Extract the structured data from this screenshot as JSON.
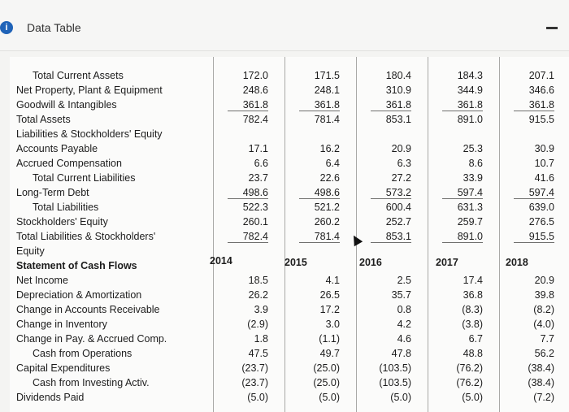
{
  "window": {
    "title": "Data Table",
    "info_icon": "info-icon",
    "minimize_icon": "minimize-icon"
  },
  "years": [
    "2014",
    "2015",
    "2016",
    "2017",
    "2018"
  ],
  "rows": [
    {
      "label": "Total Current Assets",
      "bold": false,
      "indent": true,
      "values": [
        "172.0",
        "171.5",
        "180.4",
        "184.3",
        "207.1"
      ]
    },
    {
      "label": "Net Property, Plant & Equipment",
      "bold": false,
      "indent": false,
      "values": [
        "248.6",
        "248.1",
        "310.9",
        "344.9",
        "346.6"
      ]
    },
    {
      "label": "Goodwill & Intangibles",
      "bold": false,
      "indent": false,
      "values": [
        "361.8",
        "361.8",
        "361.8",
        "361.8",
        "361.8"
      ]
    },
    {
      "label": "Total Assets",
      "bold": false,
      "indent": false,
      "values": [
        "782.4",
        "781.4",
        "853.1",
        "891.0",
        "915.5"
      ]
    },
    {
      "label": "Liabilities & Stockholders' Equity",
      "bold": false,
      "indent": false,
      "values": [
        "",
        "",
        "",
        "",
        ""
      ]
    },
    {
      "label": "Accounts Payable",
      "bold": false,
      "indent": false,
      "values": [
        "17.1",
        "16.2",
        "20.9",
        "25.3",
        "30.9"
      ]
    },
    {
      "label": "Accrued Compensation",
      "bold": false,
      "indent": false,
      "values": [
        "6.6",
        "6.4",
        "6.3",
        "8.6",
        "10.7"
      ]
    },
    {
      "label": "Total Current Liabilities",
      "bold": false,
      "indent": true,
      "values": [
        "23.7",
        "22.6",
        "27.2",
        "33.9",
        "41.6"
      ]
    },
    {
      "label": "Long-Term Debt",
      "bold": false,
      "indent": false,
      "values": [
        "498.6",
        "498.6",
        "573.2",
        "597.4",
        "597.4"
      ]
    },
    {
      "label": "Total Liabilities",
      "bold": false,
      "indent": true,
      "values": [
        "522.3",
        "521.2",
        "600.4",
        "631.3",
        "639.0"
      ]
    },
    {
      "label": "Stockholders' Equity",
      "bold": false,
      "indent": false,
      "values": [
        "260.1",
        "260.2",
        "252.7",
        "259.7",
        "276.5"
      ]
    },
    {
      "label": "Total Liabilities & Stockholders'",
      "bold": false,
      "indent": false,
      "values": [
        "782.4",
        "781.4",
        "853.1",
        "891.0",
        "915.5"
      ]
    },
    {
      "label": "Equity",
      "bold": false,
      "indent": false,
      "values": [
        "",
        "",
        "",
        "",
        ""
      ]
    },
    {
      "label": "Statement of Cash Flows",
      "bold": true,
      "indent": false,
      "values": [
        "",
        "",
        "",
        "",
        ""
      ]
    },
    {
      "label": "Net Income",
      "bold": false,
      "indent": false,
      "values": [
        "18.5",
        "4.1",
        "2.5",
        "17.4",
        "20.9"
      ]
    },
    {
      "label": "Depreciation & Amortization",
      "bold": false,
      "indent": false,
      "values": [
        "26.2",
        "26.5",
        "35.7",
        "36.8",
        "39.8"
      ]
    },
    {
      "label": "Change in Accounts Receivable",
      "bold": false,
      "indent": false,
      "values": [
        "3.9",
        "17.2",
        "0.8",
        "(8.3)",
        "(8.2)"
      ]
    },
    {
      "label": "Change in Inventory",
      "bold": false,
      "indent": false,
      "values": [
        "(2.9)",
        "3.0",
        "4.2",
        "(3.8)",
        "(4.0)"
      ]
    },
    {
      "label": "Change in Pay. & Accrued Comp.",
      "bold": false,
      "indent": false,
      "values": [
        "1.8",
        "(1.1)",
        "4.6",
        "6.7",
        "7.7"
      ]
    },
    {
      "label": "Cash from Operations",
      "bold": false,
      "indent": true,
      "values": [
        "47.5",
        "49.7",
        "47.8",
        "48.8",
        "56.2"
      ]
    },
    {
      "label": "Capital Expenditures",
      "bold": false,
      "indent": false,
      "values": [
        "(23.7)",
        "(25.0)",
        "(103.5)",
        "(76.2)",
        "(38.4)"
      ]
    },
    {
      "label": "Cash from Investing Activ.",
      "bold": false,
      "indent": true,
      "values": [
        "(23.7)",
        "(25.0)",
        "(103.5)",
        "(76.2)",
        "(38.4)"
      ]
    },
    {
      "label": "Dividends Paid",
      "bold": false,
      "indent": false,
      "values": [
        "(5.0)",
        "(5.0)",
        "(5.0)",
        "(5.0)",
        "(7.2)"
      ]
    }
  ]
}
